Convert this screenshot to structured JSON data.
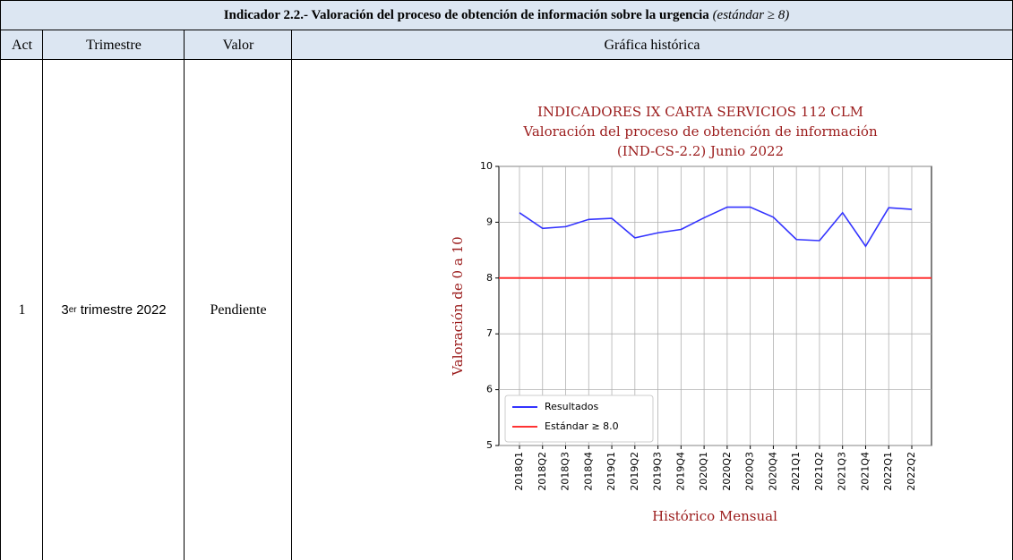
{
  "table": {
    "title": "Indicador 2.2.- Valoración del proceso de obtención de información sobre la urgencia",
    "title_note": "(estándar ≥ 8)",
    "headers": [
      "Act",
      "Trimestre",
      "Valor",
      "Gráfica histórica"
    ],
    "rows": [
      [
        "1",
        [
          "3",
          "er",
          " trimestre 2022"
        ],
        "Pendiente"
      ]
    ]
  },
  "chart_data": {
    "type": "line",
    "title": [
      "INDICADORES IX CARTA SERVICIOS 112 CLM",
      "Valoración del proceso de obtención de información",
      "(IND-CS-2.2) Junio 2022"
    ],
    "y_label": "Valoración de 0 a 10",
    "x_label": "Histórico Mensual",
    "categories": [
      "2018Q1",
      "2018Q2",
      "2018Q3",
      "2018Q4",
      "2019Q1",
      "2019Q2",
      "2019Q3",
      "2019Q4",
      "2020Q1",
      "2020Q2",
      "2020Q3",
      "2020Q4",
      "2021Q1",
      "2021Q2",
      "2021Q3",
      "2021Q4",
      "2022Q1",
      "2022Q2"
    ],
    "series": [
      {
        "name": "Resultados",
        "color": "#3333ff",
        "values": [
          9.17,
          8.89,
          8.92,
          9.05,
          9.07,
          8.72,
          8.81,
          8.87,
          9.08,
          9.27,
          9.27,
          9.09,
          8.69,
          8.67,
          9.17,
          8.57,
          9.26,
          9.23
        ]
      }
    ],
    "hlines": [
      {
        "name": "Estándar ≥ 8.0",
        "color": "#ff3333",
        "value": 8
      }
    ],
    "ylim": [
      5,
      10
    ],
    "yticks": [
      5,
      6,
      7,
      8,
      9,
      10
    ],
    "grid": true,
    "legend": "lower left"
  }
}
